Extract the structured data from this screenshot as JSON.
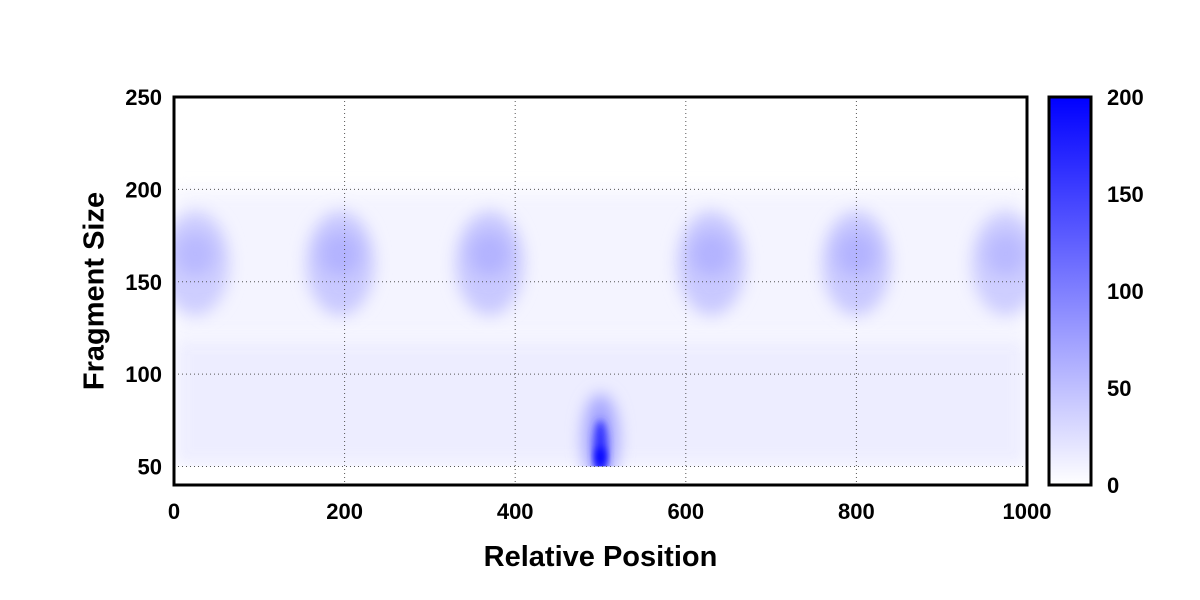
{
  "chart_data": {
    "type": "heatmap",
    "xlabel": "Relative Position",
    "ylabel": "Fragment Size",
    "xlim": [
      0,
      1000
    ],
    "ylim": [
      40,
      250
    ],
    "data_y_range": [
      50,
      250
    ],
    "x_ticks": [
      0,
      200,
      400,
      600,
      800,
      1000
    ],
    "y_ticks": [
      50,
      100,
      150,
      200,
      250
    ],
    "grid": true,
    "colormap": {
      "min_color": "#ffffff",
      "max_color": "#0000ff"
    },
    "colorbar": {
      "min": 0,
      "max": 200,
      "ticks": [
        0,
        50,
        100,
        150,
        200
      ]
    },
    "features": [
      {
        "x": 25,
        "y": 160,
        "value": 55
      },
      {
        "x": 195,
        "y": 160,
        "value": 60
      },
      {
        "x": 370,
        "y": 160,
        "value": 60
      },
      {
        "x": 630,
        "y": 160,
        "value": 60
      },
      {
        "x": 800,
        "y": 160,
        "value": 60
      },
      {
        "x": 975,
        "y": 160,
        "value": 55
      },
      {
        "x": 500,
        "y": 60,
        "value": 200
      }
    ],
    "notes_background_value_low_fragments": 15
  }
}
